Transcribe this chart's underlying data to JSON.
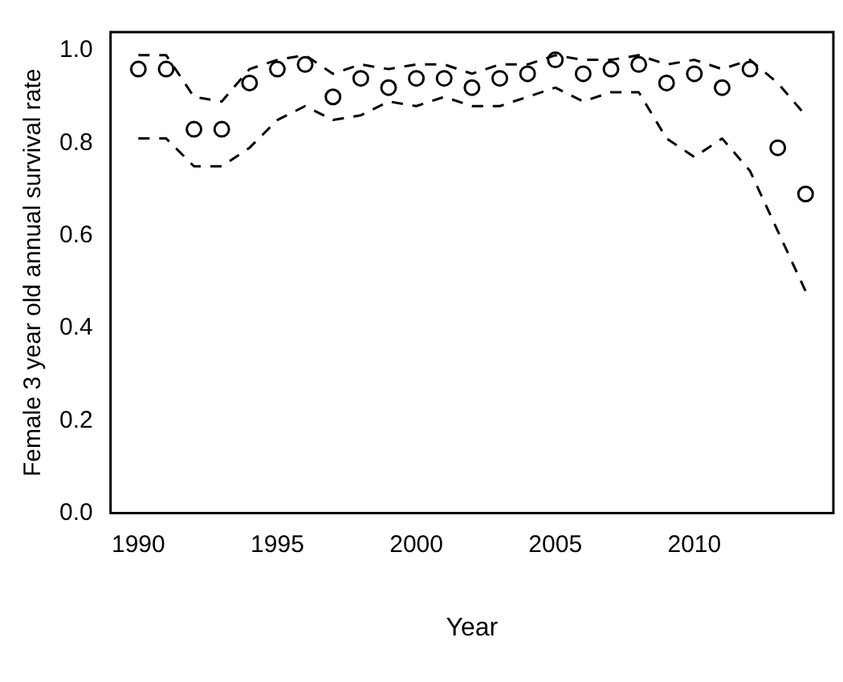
{
  "chart_data": {
    "type": "scatter",
    "xlabel": "Year",
    "ylabel": "Female 3 year old annual survival rate",
    "x": [
      1990,
      1991,
      1992,
      1993,
      1994,
      1995,
      1996,
      1997,
      1998,
      1999,
      2000,
      2001,
      2002,
      2003,
      2004,
      2005,
      2006,
      2007,
      2008,
      2009,
      2010,
      2011,
      2012,
      2013,
      2014
    ],
    "series": [
      {
        "color": "#000000",
        "marker": "circle",
        "values": [
          0.96,
          0.96,
          0.83,
          0.83,
          0.93,
          0.96,
          0.97,
          0.9,
          0.94,
          0.92,
          0.94,
          0.94,
          0.92,
          0.94,
          0.95,
          0.98,
          0.95,
          0.96,
          0.97,
          0.93,
          0.95,
          0.92,
          0.96,
          0.79,
          0.69
        ]
      },
      {
        "type": "line",
        "color": "#000000",
        "marker": "none",
        "line_style": "dashed",
        "values": [
          0.99,
          0.99,
          0.9,
          0.89,
          0.96,
          0.98,
          0.99,
          0.95,
          0.97,
          0.96,
          0.97,
          0.97,
          0.95,
          0.97,
          0.97,
          0.99,
          0.98,
          0.98,
          0.99,
          0.97,
          0.98,
          0.96,
          0.98,
          0.93,
          0.86
        ]
      },
      {
        "type": "line",
        "color": "#000000",
        "marker": "none",
        "line_style": "dashed",
        "values": [
          0.81,
          0.81,
          0.75,
          0.75,
          0.79,
          0.85,
          0.88,
          0.85,
          0.86,
          0.89,
          0.88,
          0.9,
          0.88,
          0.88,
          0.9,
          0.92,
          0.89,
          0.91,
          0.91,
          0.81,
          0.77,
          0.81,
          0.74,
          0.61,
          0.48
        ]
      }
    ],
    "xlim": [
      1989,
      2015
    ],
    "xticks": [
      1990,
      1995,
      2000,
      2005,
      2010
    ],
    "ylim": [
      0,
      1.04
    ],
    "yticks": [
      {
        "value": 0,
        "label": "0.0"
      },
      {
        "value": 0.2,
        "label": "0.2"
      },
      {
        "value": 0.4,
        "label": "0.4"
      },
      {
        "value": 0.6,
        "label": "0.6"
      },
      {
        "value": 0.8,
        "label": "0.8"
      },
      {
        "value": 1,
        "label": "1.0"
      }
    ],
    "grid": false,
    "legend": false
  }
}
